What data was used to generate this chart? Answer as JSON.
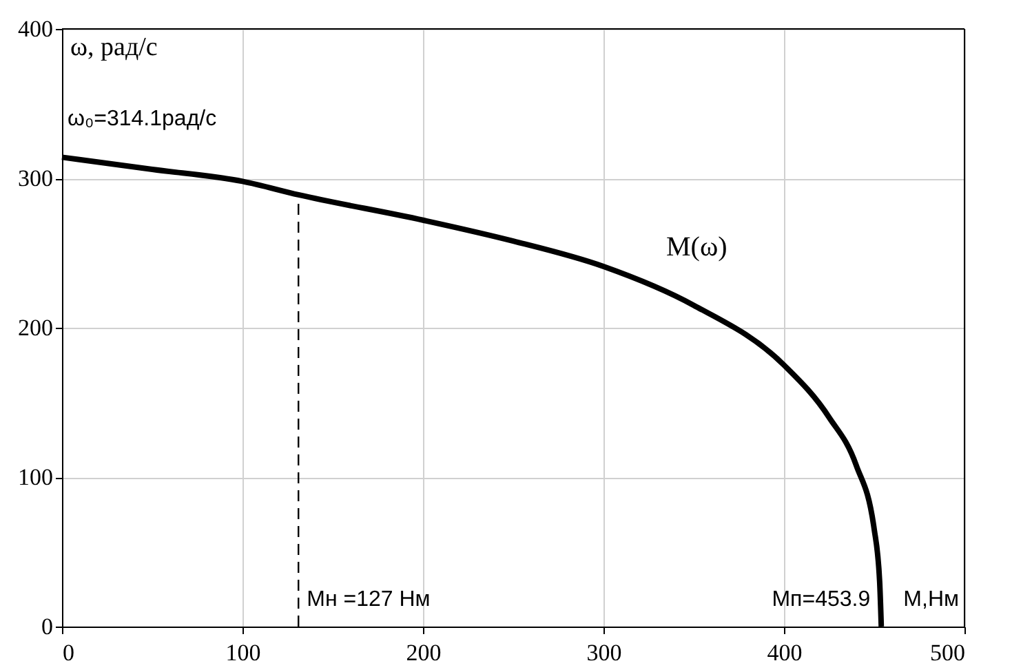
{
  "chart_data": {
    "type": "line",
    "xlabel": "M,Нм",
    "ylabel": "ω, рад/с",
    "xlim": [
      0,
      500
    ],
    "ylim": [
      0,
      400
    ],
    "xticks": [
      0,
      100,
      200,
      300,
      400,
      500
    ],
    "yticks": [
      0,
      100,
      200,
      300,
      400
    ],
    "grid": true,
    "marker": "none",
    "series": [
      {
        "name": "M(ω)",
        "color": "#000000",
        "line_style": "solid",
        "x": [
          0,
          50,
          100,
          131,
          200,
          250,
          300,
          350,
          400,
          425,
          440,
          450,
          453,
          453.9
        ],
        "values": [
          314.1,
          306,
          298,
          289,
          272,
          258,
          241,
          215,
          175,
          140,
          108,
          65,
          30,
          0
        ]
      },
      {
        "color": "#000000",
        "line_style": "dashed",
        "x": [
          131,
          131
        ],
        "values": [
          0,
          289
        ]
      }
    ],
    "annotations": [
      {
        "text": "ω₀=314.1рад/с",
        "x": 0,
        "y": 314.1
      },
      {
        "text": "Mн =127 Нм",
        "x": 131,
        "y": 0
      },
      {
        "text": "Mп=453.9",
        "x": 453.9,
        "y": 0
      }
    ]
  }
}
